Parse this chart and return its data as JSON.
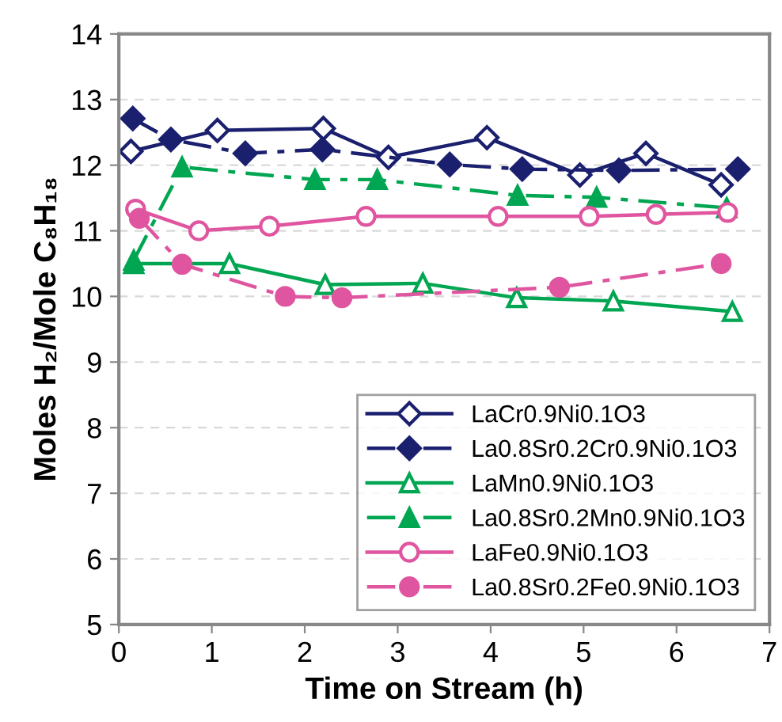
{
  "chart_data": {
    "type": "line",
    "xlabel": "Time on Stream (h)",
    "ylabel": "Moles H₂/Mole C₈H₁₈",
    "xlim": [
      0,
      7
    ],
    "xticks": [
      0,
      1,
      2,
      3,
      4,
      5,
      6,
      7
    ],
    "ylim": [
      5,
      14
    ],
    "yticks": [
      5,
      6,
      7,
      8,
      9,
      10,
      11,
      12,
      13,
      14
    ],
    "grid": "y",
    "legend": "bottom right",
    "series": [
      {
        "name": "LaCr0.9Ni0.1O3",
        "color": "#1a1f6e",
        "marker": "diamond",
        "line_style": "solid",
        "x": [
          0.13,
          1.06,
          2.2,
          2.9,
          3.96,
          4.96,
          5.67,
          6.48
        ],
        "values": [
          12.21,
          12.53,
          12.56,
          12.12,
          12.42,
          11.85,
          12.18,
          11.7
        ]
      },
      {
        "name": "La0.8Sr0.2Cr0.9Ni0.1O3",
        "color": "#1a1f6e",
        "marker": "diamond",
        "line_style": "dashed",
        "x": [
          0.15,
          0.56,
          1.36,
          2.19,
          3.56,
          4.34,
          5.38,
          6.66
        ],
        "values": [
          12.71,
          12.39,
          12.18,
          12.24,
          12.01,
          11.94,
          11.92,
          11.94
        ]
      },
      {
        "name": "LaMn0.9Ni0.1O3",
        "color": "#00a651",
        "marker": "triangle",
        "line_style": "solid",
        "x": [
          0.16,
          1.19,
          2.22,
          3.27,
          4.28,
          5.32,
          6.6
        ],
        "values": [
          10.5,
          10.5,
          10.18,
          10.2,
          9.98,
          9.93,
          9.77
        ]
      },
      {
        "name": "La0.8Sr0.2Mn0.9Ni0.1O3",
        "color": "#00a651",
        "marker": "triangle",
        "line_style": "dashed",
        "x": [
          0.16,
          0.68,
          2.11,
          2.78,
          4.29,
          5.14,
          6.54
        ],
        "values": [
          10.55,
          11.97,
          11.78,
          11.78,
          11.54,
          11.51,
          11.35
        ]
      },
      {
        "name": "LaFe0.9Ni0.1O3",
        "color": "#e0559f",
        "marker": "circle",
        "line_style": "solid",
        "x": [
          0.18,
          0.86,
          1.62,
          2.66,
          4.08,
          5.06,
          5.78,
          6.55
        ],
        "values": [
          11.33,
          11.0,
          11.07,
          11.22,
          11.22,
          11.22,
          11.25,
          11.28
        ]
      },
      {
        "name": "La0.8Sr0.2Fe0.9Ni0.1O3",
        "color": "#e0559f",
        "marker": "circle",
        "line_style": "dashed",
        "x": [
          0.22,
          0.68,
          1.79,
          2.4,
          4.74,
          6.48
        ],
        "values": [
          11.19,
          10.49,
          10.0,
          9.98,
          10.14,
          10.5
        ]
      }
    ]
  }
}
